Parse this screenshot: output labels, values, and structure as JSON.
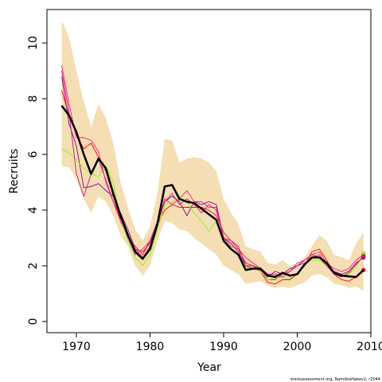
{
  "chart_data": {
    "type": "line",
    "xlabel": "Year",
    "ylabel": "Recruits",
    "xlim": [
      1966,
      2010
    ],
    "ylim": [
      -0.4,
      11.2
    ],
    "xticks": [
      1970,
      1980,
      1990,
      2000,
      2010
    ],
    "yticks": [
      0,
      2,
      4,
      6,
      8,
      10
    ],
    "credit": "stockassessment.org, NamibiaHakev2, r2044",
    "colors": {
      "band": "#f5deb3",
      "main": "#000000",
      "series": [
        "#ff0000",
        "#8b008b",
        "#ff1493",
        "#7cfc00",
        "#c71585"
      ]
    },
    "band_x": [
      1968,
      1969,
      1970,
      1971,
      1972,
      1973,
      1974,
      1975,
      1976,
      1977,
      1978,
      1979,
      1980,
      1981,
      1982,
      1983,
      1984,
      1985,
      1986,
      1987,
      1988,
      1989,
      1990,
      1991,
      1992,
      1993,
      1994,
      1995,
      1996,
      1997,
      1998,
      1999,
      2000,
      2001,
      2002,
      2003,
      2004,
      2005,
      2006,
      2007,
      2008,
      2009
    ],
    "band_upper": [
      10.8,
      10.2,
      9.0,
      7.9,
      7.0,
      7.8,
      7.3,
      6.4,
      5.0,
      4.1,
      3.3,
      2.9,
      3.4,
      4.6,
      6.55,
      6.5,
      5.7,
      5.85,
      5.9,
      5.85,
      5.7,
      5.4,
      4.4,
      3.9,
      3.5,
      2.7,
      2.6,
      2.5,
      2.1,
      2.05,
      2.2,
      2.0,
      2.1,
      2.3,
      2.7,
      3.1,
      2.9,
      2.4,
      2.3,
      2.2,
      2.8,
      3.2
    ],
    "band_lower": [
      5.6,
      5.55,
      5.1,
      4.4,
      3.9,
      4.5,
      4.3,
      3.8,
      3.1,
      2.7,
      2.0,
      1.65,
      2.0,
      2.9,
      3.6,
      3.55,
      3.3,
      3.25,
      3.0,
      2.8,
      2.6,
      2.4,
      2.0,
      1.85,
      1.7,
      1.35,
      1.4,
      1.45,
      1.3,
      1.2,
      1.25,
      1.2,
      1.3,
      1.4,
      1.65,
      1.7,
      1.6,
      1.35,
      1.3,
      1.2,
      1.25,
      1.1
    ],
    "main": {
      "x": [
        1968,
        1969,
        1970,
        1971,
        1972,
        1973,
        1974,
        1975,
        1976,
        1977,
        1978,
        1979,
        1980,
        1981,
        1982,
        1983,
        1984,
        1985,
        1986,
        1987,
        1988,
        1989,
        1990,
        1991,
        1992,
        1993,
        1994,
        1995,
        1996,
        1997,
        1998,
        1999,
        2000,
        2001,
        2002,
        2003,
        2004,
        2005,
        2006,
        2007,
        2008,
        2009
      ],
      "y": [
        7.75,
        7.4,
        6.8,
        6.0,
        5.3,
        5.85,
        5.5,
        4.6,
        3.8,
        3.1,
        2.5,
        2.25,
        2.6,
        3.5,
        4.85,
        4.9,
        4.4,
        4.3,
        4.25,
        4.05,
        3.85,
        3.65,
        2.9,
        2.6,
        2.4,
        1.85,
        1.9,
        1.9,
        1.65,
        1.6,
        1.75,
        1.65,
        1.7,
        2.05,
        2.3,
        2.3,
        2.1,
        1.75,
        1.65,
        1.62,
        1.6,
        1.85
      ]
    },
    "series": [
      {
        "color": "#ff0000",
        "end_y": 1.85,
        "y": [
          8.3,
          7.4,
          6.7,
          6.2,
          6.4,
          5.9,
          5.4,
          4.5,
          3.6,
          3.0,
          2.7,
          2.4,
          2.9,
          3.5,
          4.0,
          4.2,
          4.1,
          4.1,
          4.1,
          4.1,
          4.0,
          3.8,
          3.2,
          2.9,
          2.6,
          2.1,
          2.0,
          1.8,
          1.4,
          1.35,
          1.5,
          1.5,
          1.7,
          2.0,
          2.5,
          2.6,
          2.2,
          1.7,
          1.5,
          1.45,
          1.6,
          1.85
        ]
      },
      {
        "color": "#8b008b",
        "end_y": 2.3,
        "y": [
          8.8,
          7.1,
          6.3,
          4.8,
          4.85,
          4.95,
          4.7,
          4.5,
          3.9,
          3.3,
          2.6,
          2.5,
          2.8,
          3.6,
          4.3,
          4.5,
          4.3,
          3.8,
          4.3,
          4.2,
          4.3,
          4.2,
          3.0,
          2.8,
          2.5,
          2.0,
          1.9,
          1.85,
          1.6,
          1.8,
          1.7,
          1.9,
          2.0,
          2.2,
          2.4,
          2.3,
          2.0,
          1.8,
          1.7,
          1.8,
          2.1,
          2.3
        ]
      },
      {
        "color": "#ff1493",
        "end_y": 2.4,
        "y": [
          9.2,
          7.8,
          6.6,
          6.6,
          6.5,
          6.1,
          5.0,
          4.3,
          3.6,
          3.0,
          2.4,
          2.6,
          2.9,
          3.6,
          4.4,
          4.2,
          4.4,
          4.7,
          4.3,
          4.3,
          4.1,
          4.1,
          3.0,
          2.7,
          2.6,
          2.3,
          2.1,
          1.9,
          1.5,
          1.5,
          1.7,
          1.8,
          2.1,
          2.2,
          2.4,
          2.5,
          2.1,
          1.9,
          1.8,
          1.9,
          2.2,
          2.4
        ]
      },
      {
        "color": "#7cfc00",
        "end_y": 2.45,
        "y": [
          6.2,
          6.05,
          5.8,
          5.5,
          5.3,
          5.2,
          5.6,
          5.0,
          3.7,
          2.9,
          2.3,
          2.0,
          2.4,
          3.3,
          4.2,
          4.3,
          4.5,
          4.3,
          3.9,
          3.6,
          3.25,
          3.6,
          2.9,
          2.6,
          2.4,
          1.9,
          1.9,
          1.8,
          1.5,
          1.55,
          1.6,
          1.55,
          1.7,
          2.1,
          2.2,
          2.2,
          2.0,
          1.75,
          1.65,
          1.7,
          1.95,
          2.45
        ]
      },
      {
        "color": "#c71585",
        "end_y": 2.35,
        "y": [
          9.0,
          7.5,
          5.3,
          4.5,
          5.3,
          5.8,
          5.1,
          4.3,
          3.7,
          3.1,
          2.6,
          2.3,
          2.7,
          3.5,
          4.3,
          4.6,
          4.2,
          4.4,
          4.2,
          3.9,
          4.2,
          4.0,
          3.0,
          2.9,
          2.7,
          2.0,
          2.0,
          1.9,
          1.7,
          1.7,
          1.6,
          1.8,
          2.0,
          2.1,
          2.3,
          2.4,
          2.0,
          1.7,
          1.6,
          1.75,
          2.05,
          2.35
        ]
      }
    ]
  }
}
